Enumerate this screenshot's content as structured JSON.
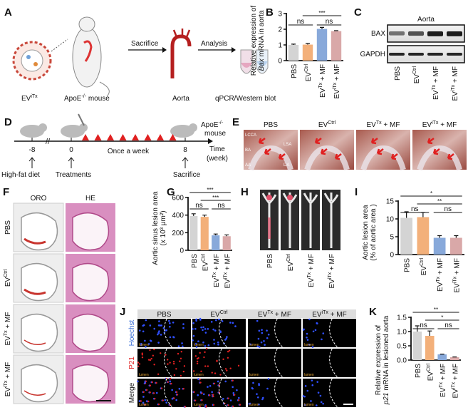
{
  "panel_labels": [
    "A",
    "B",
    "C",
    "D",
    "E",
    "F",
    "G",
    "H",
    "I",
    "J",
    "K"
  ],
  "groups": [
    {
      "base": "PBS",
      "sup": "",
      "suffix": ""
    },
    {
      "base": "EV",
      "sup": "Ctrl",
      "suffix": ""
    },
    {
      "base": "EV",
      "sup": "Tx",
      "suffix": " + MF"
    },
    {
      "base": "EV",
      "sup": "iTx",
      "suffix": " + MF"
    }
  ],
  "colors": {
    "PBS": "#d4d4d4",
    "EVCtrl": "#f3b07a",
    "EVTx_MF": "#88a9da",
    "EViTx_MF": "#d9a8a8",
    "arrow_red": "#e02020"
  },
  "panel_a": {
    "ev_label_base": "EV",
    "ev_label_sup": "iTx",
    "mouse_label_base": "ApoE",
    "mouse_label_sup": "-/-",
    "mouse_label_suffix": " mouse",
    "step1": "Sacrifice",
    "aorta": "Aorta",
    "step2": "Analysis",
    "assay": "qPCR/Western blot",
    "icons": [
      "extracellular-vesicle-icon",
      "mouse-icon",
      "aorta-icon",
      "test-tube-icon"
    ]
  },
  "panel_c": {
    "title": "Aorta",
    "rows": [
      "BAX",
      "GAPDH"
    ],
    "bax_intensity": [
      0.55,
      0.7,
      0.95,
      0.95
    ]
  },
  "panel_d": {
    "ticks": [
      {
        "label": "-8",
        "caption": "High-fat diet"
      },
      {
        "label": "0",
        "caption": "Treatments"
      },
      {
        "label": "8",
        "caption": "Sacrifice"
      }
    ],
    "frequency": "Once a week",
    "injections": 8,
    "mouse_base": "ApoE",
    "mouse_sup": "-/-",
    "mouse_suffix": "mouse",
    "axis_label_1": "Time",
    "axis_label_2": "(week)"
  },
  "panel_e": {
    "annotations": [
      "LCCA",
      "BA",
      "AA",
      "LSA",
      "DA"
    ]
  },
  "panel_f": {
    "columns": [
      "ORO",
      "HE"
    ]
  },
  "panel_j": {
    "rows": [
      "Hoechst",
      "P21",
      "Merge"
    ],
    "lumen": "lumen"
  },
  "chart_data": [
    {
      "id": "B",
      "type": "bar",
      "ylabel_lines": [
        "Relative expression of",
        "Bax mRNA in aorta"
      ],
      "ylabel_italic": "Bax",
      "categories": [
        "PBS",
        "EVCtrl",
        "EVTx + MF",
        "EViTx + MF"
      ],
      "values": [
        1.0,
        1.02,
        2.02,
        1.88
      ],
      "errors": [
        0.05,
        0.07,
        0.1,
        0.03
      ],
      "ylim": [
        0,
        3
      ],
      "yticks": [
        "0",
        "1",
        "2",
        "3"
      ],
      "significance": [
        {
          "from": 1,
          "to": 2,
          "text": "ns"
        },
        {
          "from": 3,
          "to": 4,
          "text": "ns"
        },
        {
          "from": 2,
          "to": 4,
          "text": "***"
        }
      ]
    },
    {
      "id": "G",
      "type": "bar",
      "ylabel_lines": [
        "Aortic sinus lesion area",
        "(x 10³  μm²)"
      ],
      "ylabel_italic": "",
      "categories": [
        "PBS",
        "EVCtrl",
        "EVTx + MF",
        "EViTx + MF"
      ],
      "values": [
        390,
        380,
        170,
        160
      ],
      "errors": [
        25,
        20,
        15,
        15
      ],
      "ylim": [
        0,
        600
      ],
      "yticks": [
        "0",
        "200",
        "400",
        "600"
      ],
      "significance": [
        {
          "from": 1,
          "to": 2,
          "text": "ns"
        },
        {
          "from": 3,
          "to": 4,
          "text": "ns"
        },
        {
          "from": 2,
          "to": 4,
          "text": "***"
        },
        {
          "from": 1,
          "to": 4,
          "text": "***"
        }
      ]
    },
    {
      "id": "I",
      "type": "bar",
      "ylabel_lines": [
        "Aortic lesion area",
        "(% of aortic area )"
      ],
      "ylabel_italic": "",
      "categories": [
        "PBS",
        "EVCtrl",
        "EVTx + MF",
        "EViTx + MF"
      ],
      "values": [
        10.3,
        10.5,
        4.7,
        4.7
      ],
      "errors": [
        1.7,
        1.3,
        0.6,
        0.6
      ],
      "ylim": [
        0,
        15
      ],
      "yticks": [
        "0",
        "5",
        "10",
        "15"
      ],
      "significance": [
        {
          "from": 1,
          "to": 2,
          "text": "ns"
        },
        {
          "from": 3,
          "to": 4,
          "text": "ns"
        },
        {
          "from": 2,
          "to": 4,
          "text": "**"
        },
        {
          "from": 1,
          "to": 4,
          "text": "*"
        }
      ]
    },
    {
      "id": "K",
      "type": "bar",
      "ylabel_lines": [
        "Relative expression of",
        "p21 mRNA in lesioned aorta"
      ],
      "ylabel_italic": "p21",
      "categories": [
        "PBS",
        "EVCtrl",
        "EVTx + MF",
        "EViTx + MF"
      ],
      "values": [
        1.0,
        0.85,
        0.2,
        0.1
      ],
      "errors": [
        0.2,
        0.17,
        0.01,
        0.01
      ],
      "ylim": [
        0,
        1.5
      ],
      "yticks": [
        "0.0",
        "0.5",
        "1.0",
        "1.5"
      ],
      "significance": [
        {
          "from": 1,
          "to": 2,
          "text": "ns"
        },
        {
          "from": 3,
          "to": 4,
          "text": "ns"
        },
        {
          "from": 2,
          "to": 4,
          "text": "*"
        },
        {
          "from": 1,
          "to": 4,
          "text": "**"
        }
      ]
    }
  ]
}
